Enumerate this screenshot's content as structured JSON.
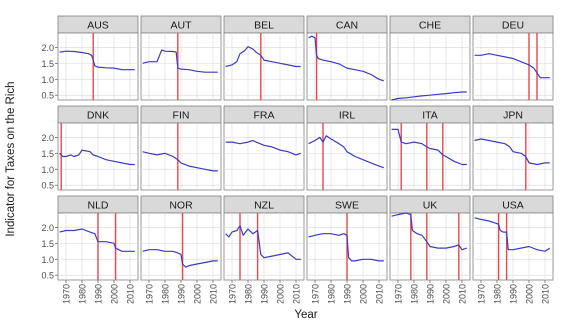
{
  "chart_data": {
    "type": "line",
    "layout": "facet-grid",
    "xlabel": "Year",
    "ylabel": "Indicator for Taxes on the Rich",
    "xlim": [
      1965,
      2015
    ],
    "ylim": [
      0.35,
      2.45
    ],
    "x_ticks": [
      1970,
      1980,
      1990,
      2000,
      2010
    ],
    "y_ticks": [
      0.5,
      1.0,
      1.5,
      2.0
    ],
    "x_tick_labels": [
      "1970",
      "1980",
      "1990",
      "2000",
      "2010"
    ],
    "y_tick_labels": [
      "0.5",
      "1.0",
      "1.5",
      "2.0"
    ],
    "grid": true,
    "colors": {
      "line": "#3b3bc4",
      "vline": "#e8474f",
      "panel_bg": "#ffffff",
      "grid": "#dedede",
      "strip_bg": "#d9d9d9",
      "strip_border": "#7f7f7f"
    },
    "panels": [
      {
        "name": "AUS",
        "vlines": [
          1987
        ],
        "x": [
          1966,
          1970,
          1975,
          1980,
          1984,
          1986,
          1987,
          1988,
          1990,
          1995,
          2000,
          2005,
          2010,
          2013
        ],
        "y": [
          1.85,
          1.88,
          1.87,
          1.84,
          1.8,
          1.75,
          1.6,
          1.42,
          1.38,
          1.36,
          1.35,
          1.3,
          1.3,
          1.3
        ]
      },
      {
        "name": "AUT",
        "vlines": [
          1988
        ],
        "x": [
          1966,
          1970,
          1975,
          1978,
          1980,
          1985,
          1987,
          1988,
          1990,
          1995,
          2000,
          2005,
          2010,
          2013
        ],
        "y": [
          1.5,
          1.55,
          1.55,
          1.92,
          1.88,
          1.87,
          1.85,
          1.35,
          1.32,
          1.3,
          1.25,
          1.22,
          1.22,
          1.22
        ]
      },
      {
        "name": "BEL",
        "vlines": [
          1988
        ],
        "x": [
          1966,
          1970,
          1973,
          1975,
          1978,
          1980,
          1983,
          1985,
          1988,
          1990,
          1995,
          2000,
          2005,
          2010,
          2013
        ],
        "y": [
          1.4,
          1.45,
          1.55,
          1.8,
          1.9,
          2.02,
          1.95,
          1.85,
          1.75,
          1.6,
          1.55,
          1.5,
          1.45,
          1.4,
          1.4
        ]
      },
      {
        "name": "CAN",
        "vlines": [
          1971
        ],
        "x": [
          1966,
          1968,
          1970,
          1971,
          1972,
          1975,
          1980,
          1985,
          1988,
          1990,
          1995,
          2000,
          2005,
          2010,
          2013
        ],
        "y": [
          2.3,
          2.35,
          2.3,
          1.75,
          1.65,
          1.6,
          1.55,
          1.48,
          1.4,
          1.35,
          1.3,
          1.25,
          1.15,
          1.0,
          0.95
        ]
      },
      {
        "name": "CHE",
        "vlines": [],
        "x": [
          1966,
          1970,
          1975,
          1980,
          1985,
          1990,
          1995,
          2000,
          2005,
          2010,
          2013
        ],
        "y": [
          0.35,
          0.4,
          0.42,
          0.45,
          0.48,
          0.5,
          0.53,
          0.55,
          0.58,
          0.6,
          0.6
        ]
      },
      {
        "name": "DEU",
        "vlines": [
          2000,
          2005
        ],
        "x": [
          1966,
          1970,
          1975,
          1980,
          1985,
          1990,
          1995,
          2000,
          2003,
          2005,
          2007,
          2010,
          2013
        ],
        "y": [
          1.75,
          1.75,
          1.8,
          1.75,
          1.7,
          1.65,
          1.55,
          1.45,
          1.35,
          1.2,
          1.05,
          1.05,
          1.05
        ]
      },
      {
        "name": "DNK",
        "vlines": [
          1967
        ],
        "x": [
          1966,
          1968,
          1970,
          1973,
          1975,
          1978,
          1980,
          1985,
          1987,
          1990,
          1995,
          2000,
          2005,
          2010,
          2013
        ],
        "y": [
          1.5,
          1.4,
          1.4,
          1.45,
          1.4,
          1.45,
          1.6,
          1.55,
          1.45,
          1.4,
          1.3,
          1.25,
          1.2,
          1.15,
          1.15
        ]
      },
      {
        "name": "FIN",
        "vlines": [
          1988
        ],
        "x": [
          1966,
          1970,
          1975,
          1980,
          1985,
          1988,
          1990,
          1995,
          2000,
          2005,
          2010,
          2013
        ],
        "y": [
          1.55,
          1.5,
          1.45,
          1.5,
          1.4,
          1.3,
          1.2,
          1.1,
          1.05,
          1.0,
          0.95,
          0.95
        ]
      },
      {
        "name": "FRA",
        "vlines": [],
        "x": [
          1966,
          1970,
          1975,
          1980,
          1983,
          1985,
          1990,
          1995,
          2000,
          2005,
          2010,
          2013
        ],
        "y": [
          1.85,
          1.85,
          1.8,
          1.85,
          1.9,
          1.85,
          1.75,
          1.7,
          1.6,
          1.55,
          1.45,
          1.5
        ]
      },
      {
        "name": "IRL",
        "vlines": [
          1975
        ],
        "x": [
          1966,
          1970,
          1973,
          1975,
          1977,
          1980,
          1985,
          1988,
          1990,
          1995,
          2000,
          2005,
          2010,
          2013
        ],
        "y": [
          1.8,
          1.9,
          2.0,
          1.85,
          2.05,
          1.95,
          1.8,
          1.7,
          1.55,
          1.4,
          1.3,
          1.2,
          1.1,
          1.05
        ]
      },
      {
        "name": "ITA",
        "vlines": [
          1972,
          1988,
          1998
        ],
        "x": [
          1966,
          1970,
          1972,
          1975,
          1980,
          1985,
          1988,
          1990,
          1995,
          1998,
          2000,
          2005,
          2010,
          2013
        ],
        "y": [
          2.25,
          2.25,
          1.85,
          1.8,
          1.85,
          1.8,
          1.7,
          1.65,
          1.6,
          1.45,
          1.4,
          1.25,
          1.15,
          1.15
        ]
      },
      {
        "name": "JPN",
        "vlines": [
          1998
        ],
        "x": [
          1966,
          1970,
          1975,
          1980,
          1985,
          1988,
          1990,
          1995,
          1998,
          2000,
          2005,
          2010,
          2013
        ],
        "y": [
          1.9,
          1.95,
          1.9,
          1.85,
          1.8,
          1.7,
          1.55,
          1.5,
          1.4,
          1.2,
          1.15,
          1.2,
          1.2
        ]
      },
      {
        "name": "NLD",
        "vlines": [
          1990,
          2001
        ],
        "x": [
          1966,
          1970,
          1975,
          1980,
          1985,
          1988,
          1990,
          1995,
          2000,
          2001,
          2003,
          2005,
          2010,
          2013
        ],
        "y": [
          1.85,
          1.9,
          1.9,
          1.95,
          1.85,
          1.8,
          1.55,
          1.55,
          1.5,
          1.35,
          1.3,
          1.25,
          1.25,
          1.25
        ]
      },
      {
        "name": "NOR",
        "vlines": [
          1991
        ],
        "x": [
          1966,
          1970,
          1975,
          1980,
          1985,
          1988,
          1990,
          1991,
          1993,
          1995,
          2000,
          2005,
          2010,
          2013
        ],
        "y": [
          1.25,
          1.3,
          1.3,
          1.25,
          1.25,
          1.2,
          1.15,
          0.85,
          0.75,
          0.8,
          0.85,
          0.9,
          0.95,
          0.95
        ]
      },
      {
        "name": "NZL",
        "vlines": [
          1975,
          1986
        ],
        "x": [
          1966,
          1968,
          1970,
          1973,
          1975,
          1977,
          1980,
          1983,
          1986,
          1988,
          1990,
          1995,
          2000,
          2005,
          2010,
          2013
        ],
        "y": [
          1.8,
          1.7,
          1.85,
          1.9,
          2.05,
          1.75,
          1.95,
          1.8,
          1.9,
          1.15,
          1.05,
          1.1,
          1.15,
          1.2,
          1.0,
          1.0
        ]
      },
      {
        "name": "SWE",
        "vlines": [
          1990
        ],
        "x": [
          1966,
          1970,
          1975,
          1980,
          1985,
          1988,
          1990,
          1991,
          1993,
          1995,
          2000,
          2005,
          2010,
          2013
        ],
        "y": [
          1.7,
          1.75,
          1.8,
          1.8,
          1.75,
          1.8,
          1.75,
          1.05,
          0.95,
          0.95,
          1.0,
          1.0,
          0.95,
          0.95
        ]
      },
      {
        "name": "UK",
        "vlines": [
          1978,
          1988,
          2008
        ],
        "x": [
          1966,
          1970,
          1975,
          1978,
          1979,
          1982,
          1985,
          1988,
          1990,
          1995,
          2000,
          2005,
          2008,
          2010,
          2013
        ],
        "y": [
          2.35,
          2.4,
          2.45,
          2.4,
          1.9,
          1.8,
          1.75,
          1.55,
          1.4,
          1.35,
          1.35,
          1.4,
          1.45,
          1.3,
          1.35
        ]
      },
      {
        "name": "USA",
        "vlines": [
          1981,
          1986
        ],
        "x": [
          1966,
          1970,
          1975,
          1978,
          1981,
          1982,
          1984,
          1986,
          1987,
          1990,
          1995,
          2000,
          2005,
          2010,
          2013
        ],
        "y": [
          2.3,
          2.25,
          2.2,
          2.15,
          2.1,
          1.9,
          1.85,
          1.85,
          1.3,
          1.3,
          1.35,
          1.4,
          1.3,
          1.25,
          1.35
        ]
      }
    ]
  }
}
